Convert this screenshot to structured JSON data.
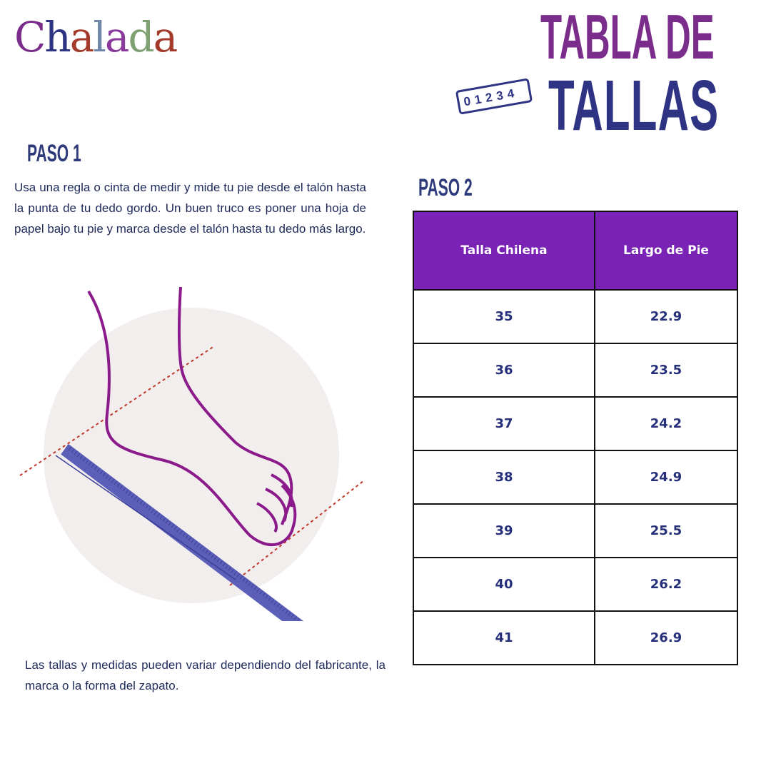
{
  "brand": {
    "logo_text": "Chalada",
    "letters": [
      "C",
      "h",
      "a",
      "l",
      "a",
      "d",
      "a"
    ],
    "letter_colors": [
      "#7b2d8b",
      "#2e3384",
      "#a33a2a",
      "#6f87a8",
      "#8a3a9a",
      "#7fa070",
      "#a33a2a"
    ]
  },
  "title": {
    "line1": "TABLA DE",
    "line2": "TALLAS",
    "ruler_digits": "01234",
    "color_line1": "#7b2d8b",
    "color_line2": "#2e3384"
  },
  "step1": {
    "heading": "PASO 1",
    "text": "Usa una regla o cinta de medir y mide tu pie desde el talón hasta la punta de tu dedo gordo. Un buen truco es poner una hoja de papel bajo tu pie y marca desde el talón hasta tu dedo más largo."
  },
  "step2": {
    "heading": "PASO 2"
  },
  "table": {
    "headers": [
      "Talla Chilena",
      "Largo de Pie"
    ],
    "header_color": "#7a22b5",
    "rows": [
      [
        "35",
        "22.9"
      ],
      [
        "36",
        "23.5"
      ],
      [
        "37",
        "24.2"
      ],
      [
        "38",
        "24.9"
      ],
      [
        "39",
        "25.5"
      ],
      [
        "40",
        "26.2"
      ],
      [
        "41",
        "26.9"
      ]
    ]
  },
  "note": "Las tallas y medidas pueden variar dependiendo del fabricante, la marca o la forma del zapato."
}
